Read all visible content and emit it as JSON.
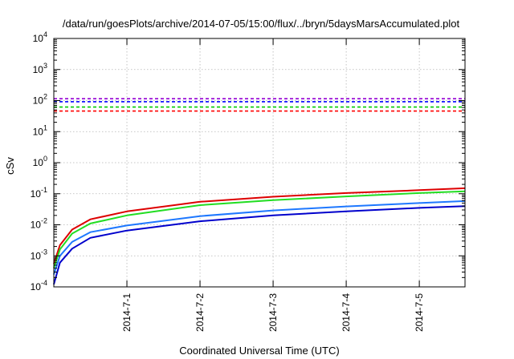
{
  "chart_data": {
    "type": "line",
    "title": "/data/run/goesPlots/archive/2014-07-05/15:00/flux/../bryn/5daysMarsAccumulated.plot",
    "xlabel": "Coordinated Universal Time (UTC)",
    "ylabel": "cSv",
    "y_scale": "log",
    "ylim": [
      0.0001,
      10000
    ],
    "xlim": [
      "2014-06-30 00:00",
      "2014-07-05 15:00"
    ],
    "x_ticks": [
      "2014-7-1",
      "2014-7-2",
      "2014-7-3",
      "2014-7-4",
      "2014-7-5"
    ],
    "y_ticks": [
      {
        "base": "10",
        "exp": "-4"
      },
      {
        "base": "10",
        "exp": "-3"
      },
      {
        "base": "10",
        "exp": "-2"
      },
      {
        "base": "10",
        "exp": "-1"
      },
      {
        "base": "10",
        "exp": "0"
      },
      {
        "base": "10",
        "exp": "1"
      },
      {
        "base": "10",
        "exp": "2"
      },
      {
        "base": "10",
        "exp": "3"
      },
      {
        "base": "10",
        "exp": "4"
      }
    ],
    "grid": true,
    "reference_lines": [
      {
        "color": "#9400d3",
        "value": 115,
        "style": "dashed"
      },
      {
        "color": "#0000ff",
        "value": 92,
        "style": "dashed"
      },
      {
        "color": "#00cc00",
        "value": 62,
        "style": "dashed"
      },
      {
        "color": "#ff0000",
        "value": 46,
        "style": "dashed"
      }
    ],
    "series": [
      {
        "color": "#dd0000",
        "points": [
          [
            "2014-06-30 00:00",
            0.00055
          ],
          [
            "2014-06-30 02:00",
            0.0022
          ],
          [
            "2014-06-30 06:00",
            0.007
          ],
          [
            "2014-06-30 12:00",
            0.015
          ],
          [
            "2014-07-01 00:00",
            0.027
          ],
          [
            "2014-07-02 00:00",
            0.055
          ],
          [
            "2014-07-03 00:00",
            0.08
          ],
          [
            "2014-07-04 00:00",
            0.105
          ],
          [
            "2014-07-05 00:00",
            0.13
          ],
          [
            "2014-07-05 15:00",
            0.15
          ]
        ]
      },
      {
        "color": "#22dd22",
        "points": [
          [
            "2014-06-30 00:00",
            0.0004
          ],
          [
            "2014-06-30 02:00",
            0.0016
          ],
          [
            "2014-06-30 06:00",
            0.0052
          ],
          [
            "2014-06-30 12:00",
            0.011
          ],
          [
            "2014-07-01 00:00",
            0.02
          ],
          [
            "2014-07-02 00:00",
            0.043
          ],
          [
            "2014-07-03 00:00",
            0.062
          ],
          [
            "2014-07-04 00:00",
            0.082
          ],
          [
            "2014-07-05 00:00",
            0.105
          ],
          [
            "2014-07-05 15:00",
            0.12
          ]
        ]
      },
      {
        "color": "#1e78ff",
        "points": [
          [
            "2014-06-30 00:00",
            0.00025
          ],
          [
            "2014-06-30 02:00",
            0.001
          ],
          [
            "2014-06-30 06:00",
            0.0028
          ],
          [
            "2014-06-30 12:00",
            0.0058
          ],
          [
            "2014-07-01 00:00",
            0.0095
          ],
          [
            "2014-07-02 00:00",
            0.019
          ],
          [
            "2014-07-03 00:00",
            0.029
          ],
          [
            "2014-07-04 00:00",
            0.039
          ],
          [
            "2014-07-05 00:00",
            0.05
          ],
          [
            "2014-07-05 15:00",
            0.058
          ]
        ]
      },
      {
        "color": "#0000cc",
        "points": [
          [
            "2014-06-30 00:00",
            0.00012
          ],
          [
            "2014-06-30 02:00",
            0.0006
          ],
          [
            "2014-06-30 06:00",
            0.0017
          ],
          [
            "2014-06-30 12:00",
            0.0038
          ],
          [
            "2014-07-01 00:00",
            0.0065
          ],
          [
            "2014-07-02 00:00",
            0.013
          ],
          [
            "2014-07-03 00:00",
            0.02
          ],
          [
            "2014-07-04 00:00",
            0.027
          ],
          [
            "2014-07-05 00:00",
            0.035
          ],
          [
            "2014-07-05 15:00",
            0.04
          ]
        ]
      }
    ]
  }
}
